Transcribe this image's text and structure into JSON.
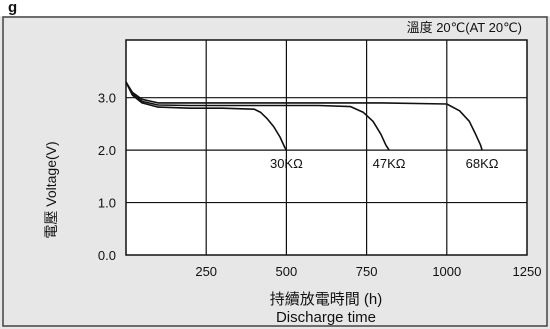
{
  "header": {
    "title_fragment": "g",
    "condition": "溫度 20℃(AT 20℃)"
  },
  "chart_data": {
    "type": "line",
    "ylabel": "電壓 Voltage(V)",
    "xlabel": "持續放電時間 (h)",
    "xlabel_en": "Discharge time",
    "xlim": [
      0,
      1250
    ],
    "ylim": [
      0,
      4.1
    ],
    "x_ticks": [
      250,
      500,
      750,
      1000,
      1250
    ],
    "y_ticks": [
      0.0,
      1.0,
      2.0,
      3.0
    ],
    "y_tick_labels": [
      "0.0",
      "1.0",
      "2.0",
      "3.0"
    ],
    "grid": true,
    "series": [
      {
        "name": "30KΩ",
        "x": [
          0,
          20,
          50,
          100,
          200,
          300,
          400,
          420,
          440,
          460,
          480,
          495,
          500
        ],
        "y": [
          3.3,
          3.05,
          2.9,
          2.82,
          2.8,
          2.8,
          2.78,
          2.72,
          2.6,
          2.45,
          2.25,
          2.05,
          2.0
        ]
      },
      {
        "name": "47KΩ",
        "x": [
          0,
          20,
          50,
          100,
          200,
          400,
          600,
          700,
          740,
          770,
          795,
          810,
          820
        ],
        "y": [
          3.3,
          3.07,
          2.93,
          2.86,
          2.85,
          2.85,
          2.85,
          2.83,
          2.72,
          2.55,
          2.3,
          2.1,
          2.0
        ]
      },
      {
        "name": "68KΩ",
        "x": [
          0,
          20,
          50,
          100,
          200,
          500,
          800,
          1000,
          1040,
          1070,
          1090,
          1105,
          1110
        ],
        "y": [
          3.3,
          3.1,
          2.97,
          2.9,
          2.9,
          2.9,
          2.9,
          2.88,
          2.75,
          2.55,
          2.3,
          2.1,
          2.0
        ]
      }
    ]
  }
}
